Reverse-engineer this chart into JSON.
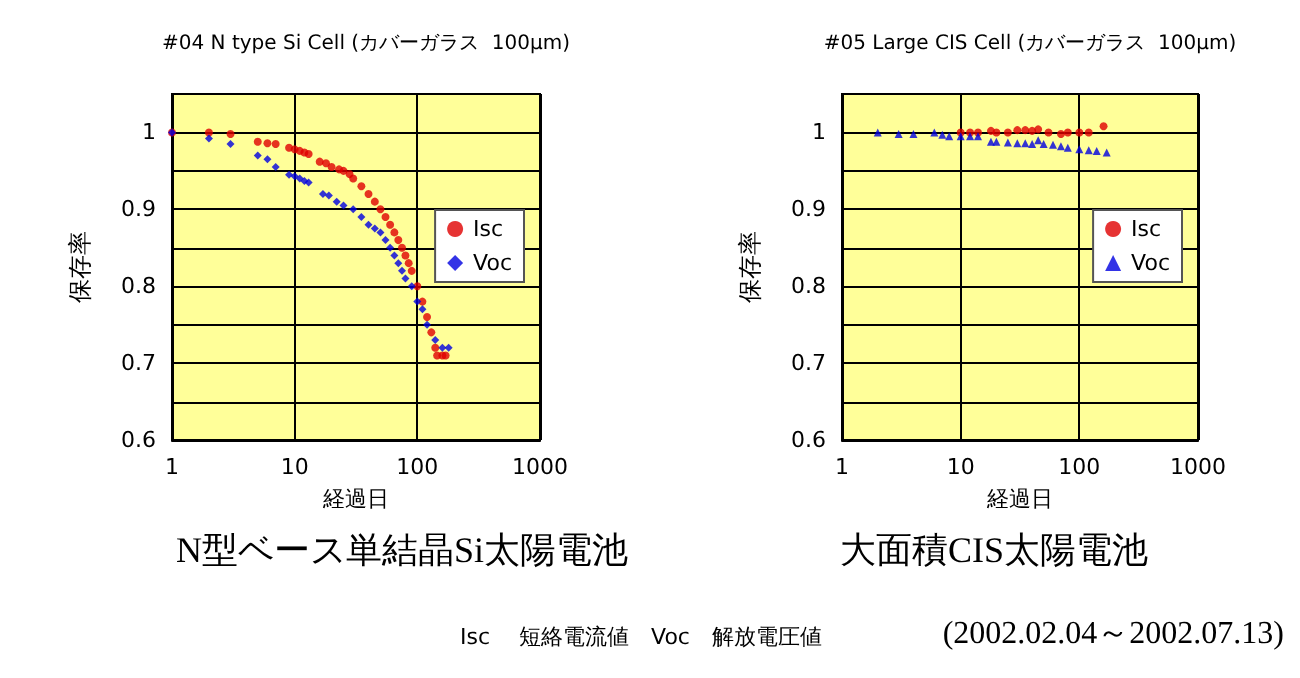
{
  "chart_data": [
    {
      "type": "scatter",
      "title": "#04 N type Si Cell (カバーガラス  100μm)",
      "xlabel": "経過日",
      "ylabel": "保存率",
      "annotations": [
        "N型ベース単結晶Si太陽電池"
      ],
      "log": "x",
      "xlim": [
        1,
        1000
      ],
      "xticks": [
        1,
        10,
        100,
        1000
      ],
      "ylim": [
        0.6,
        1.05
      ],
      "yticks": [
        0.6,
        {
          "value": 0.65,
          "label": null
        },
        0.7,
        {
          "value": 0.75,
          "label": null
        },
        0.8,
        {
          "value": 0.85,
          "label": null
        },
        0.9,
        {
          "value": 0.95,
          "label": null
        },
        1
      ],
      "grid": true,
      "legend": "right",
      "series": [
        {
          "name": "Isc",
          "color": "#e00000",
          "marker": "circle",
          "x": [
            1,
            2,
            3,
            5,
            6,
            7,
            9,
            10,
            11,
            12,
            13,
            16,
            18,
            20,
            23,
            25,
            28,
            30,
            35,
            40,
            45,
            50,
            55,
            60,
            65,
            70,
            75,
            80,
            85,
            90,
            100,
            110,
            120,
            130,
            140,
            145,
            160,
            170
          ],
          "values": [
            1.0,
            1.0,
            0.998,
            0.988,
            0.986,
            0.985,
            0.98,
            0.978,
            0.976,
            0.974,
            0.972,
            0.962,
            0.96,
            0.955,
            0.952,
            0.95,
            0.946,
            0.94,
            0.93,
            0.92,
            0.91,
            0.9,
            0.89,
            0.88,
            0.87,
            0.86,
            0.85,
            0.84,
            0.83,
            0.82,
            0.8,
            0.78,
            0.76,
            0.74,
            0.72,
            0.71,
            0.71,
            0.71
          ]
        },
        {
          "name": "Voc",
          "color": "#0000e0",
          "marker": "diamond",
          "x": [
            1,
            2,
            3,
            5,
            6,
            7,
            9,
            10,
            11,
            12,
            13,
            17,
            19,
            22,
            25,
            30,
            35,
            40,
            45,
            50,
            55,
            60,
            65,
            70,
            75,
            80,
            90,
            100,
            110,
            120,
            140,
            160,
            180
          ],
          "values": [
            1.0,
            0.992,
            0.985,
            0.97,
            0.965,
            0.955,
            0.945,
            0.943,
            0.94,
            0.937,
            0.935,
            0.92,
            0.918,
            0.91,
            0.905,
            0.9,
            0.89,
            0.88,
            0.875,
            0.87,
            0.86,
            0.85,
            0.84,
            0.83,
            0.82,
            0.81,
            0.8,
            0.78,
            0.77,
            0.75,
            0.73,
            0.72,
            0.72
          ]
        }
      ]
    },
    {
      "type": "scatter",
      "title": "#05 Large CIS Cell (カバーガラス  100μm)",
      "xlabel": "経過日",
      "ylabel": "保存率",
      "annotations": [
        "大面積CIS太陽電池",
        "Isc　 短絡電流値　Voc　解放電圧値",
        "(2002.02.04～2002.07.13)"
      ],
      "log": "x",
      "xlim": [
        1,
        1000
      ],
      "xticks": [
        1,
        10,
        100,
        1000
      ],
      "ylim": [
        0.6,
        1.05
      ],
      "yticks": [
        0.6,
        {
          "value": 0.65,
          "label": null
        },
        0.7,
        {
          "value": 0.75,
          "label": null
        },
        0.8,
        {
          "value": 0.85,
          "label": null
        },
        0.9,
        {
          "value": 0.95,
          "label": null
        },
        1
      ],
      "grid": true,
      "legend": "right",
      "series": [
        {
          "name": "Isc",
          "color": "#e00000",
          "marker": "circle",
          "x": [
            10,
            12,
            14,
            18,
            20,
            25,
            30,
            35,
            40,
            45,
            55,
            70,
            80,
            100,
            120,
            160
          ],
          "values": [
            1.0,
            1.0,
            1.0,
            1.002,
            1.0,
            1.0,
            1.003,
            1.003,
            1.002,
            1.004,
            1.0,
            0.998,
            1.0,
            1.0,
            1.0,
            1.008
          ]
        },
        {
          "name": "Voc",
          "color": "#0000e0",
          "marker": "triangle",
          "x": [
            2,
            3,
            4,
            6,
            7,
            8,
            10,
            12,
            14,
            18,
            20,
            25,
            30,
            35,
            40,
            45,
            50,
            60,
            70,
            80,
            100,
            120,
            140,
            170
          ],
          "values": [
            1.0,
            0.998,
            0.998,
            1.0,
            0.997,
            0.995,
            0.995,
            0.995,
            0.995,
            0.988,
            0.988,
            0.987,
            0.986,
            0.986,
            0.985,
            0.99,
            0.985,
            0.984,
            0.982,
            0.98,
            0.978,
            0.977,
            0.976,
            0.974
          ]
        }
      ]
    }
  ]
}
